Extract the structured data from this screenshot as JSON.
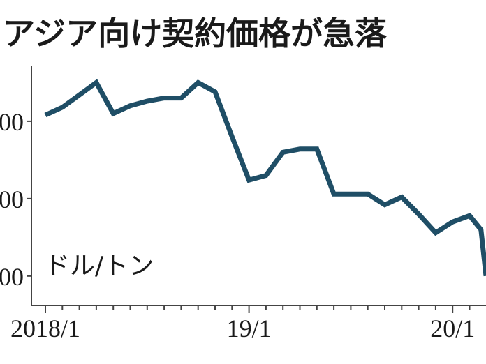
{
  "chart_data": {
    "type": "line",
    "title": "アジア向け契約価格が急落",
    "unit_label": "ドル/トン",
    "x_tick_labels": [
      "2018/1",
      "19/1",
      "20/1"
    ],
    "y_tick_labels": [
      "00",
      "00",
      "00"
    ],
    "y_ticks": [
      450,
      400,
      350
    ],
    "ylim": [
      331,
      486
    ],
    "grid": false,
    "line_color": "#1f4e66",
    "series": [
      {
        "x": [
          "2018-01",
          "2018-02",
          "2018-03",
          "2018-04",
          "2018-05",
          "2018-06",
          "2018-07",
          "2018-08",
          "2018-09",
          "2018-10",
          "2018-11",
          "2018-12",
          "2019-01",
          "2019-02",
          "2019-03",
          "2019-04",
          "2019-05",
          "2019-06",
          "2019-07",
          "2019-08",
          "2019-09",
          "2019-10",
          "2019-11",
          "2019-12",
          "2020-01",
          "2020-02"
        ],
        "values": [
          454,
          459,
          467,
          475,
          455,
          460,
          463,
          465,
          465,
          475,
          469,
          440,
          412,
          415,
          430,
          432,
          432,
          403,
          403,
          403,
          396,
          401,
          390,
          378,
          385,
          389
        ]
      }
    ],
    "trailing_partial": {
      "x": [
        "2020-02",
        "2020-03",
        "2020-03"
      ],
      "values": [
        389,
        380,
        350
      ]
    }
  }
}
